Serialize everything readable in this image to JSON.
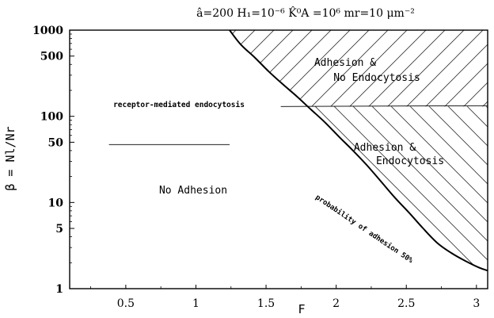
{
  "header": {
    "params": "â=200   H₁=10⁻⁶   K̂⁰A =10⁶   mr=10 μm⁻²"
  },
  "chart_data": {
    "type": "area",
    "xlabel": "F",
    "ylabel": "β = Nl/Nr",
    "xlim": [
      0.1,
      3.08
    ],
    "ylim": [
      1,
      1000
    ],
    "yscale": "log",
    "xticks": [
      0.5,
      1,
      1.5,
      2,
      2.5,
      3
    ],
    "xtick_labels": [
      "0.5",
      "1",
      "1.5",
      "2",
      "2.5",
      "3"
    ],
    "yticks": [
      1,
      5,
      10,
      50,
      100,
      500,
      1000
    ],
    "ytick_labels": [
      "1",
      "5",
      "10",
      "50",
      "100",
      "500",
      "1000"
    ],
    "grid": false,
    "boundary": {
      "name": "probability of adhesion 50%",
      "x": [
        1.24,
        1.32,
        1.42,
        1.52,
        1.62,
        1.72,
        1.82,
        1.92,
        2.02,
        2.12,
        2.22,
        2.32,
        2.42,
        2.52,
        2.62,
        2.72,
        2.82,
        2.92,
        3.02,
        3.08
      ],
      "y": [
        1000,
        680,
        480,
        330,
        235,
        170,
        120,
        85,
        58,
        40,
        27,
        17.5,
        11.3,
        7.6,
        5,
        3.4,
        2.6,
        2.1,
        1.75,
        1.62
      ]
    },
    "endocytosis_threshold": 130,
    "legend_line": {
      "x": [
        0.38,
        1.24
      ],
      "y": [
        47,
        47
      ]
    },
    "regions": [
      {
        "label_line1": "Adhesion &",
        "label_line2": "No Endocytosis",
        "pattern": "hatch-up"
      },
      {
        "label_line1": "Adhesion &",
        "label_line2": "Endocytosis",
        "pattern": "hatch-down"
      },
      {
        "label": "No Adhesion"
      }
    ],
    "annotations": {
      "receptor": "receptor-mediated endocytosis"
    }
  }
}
